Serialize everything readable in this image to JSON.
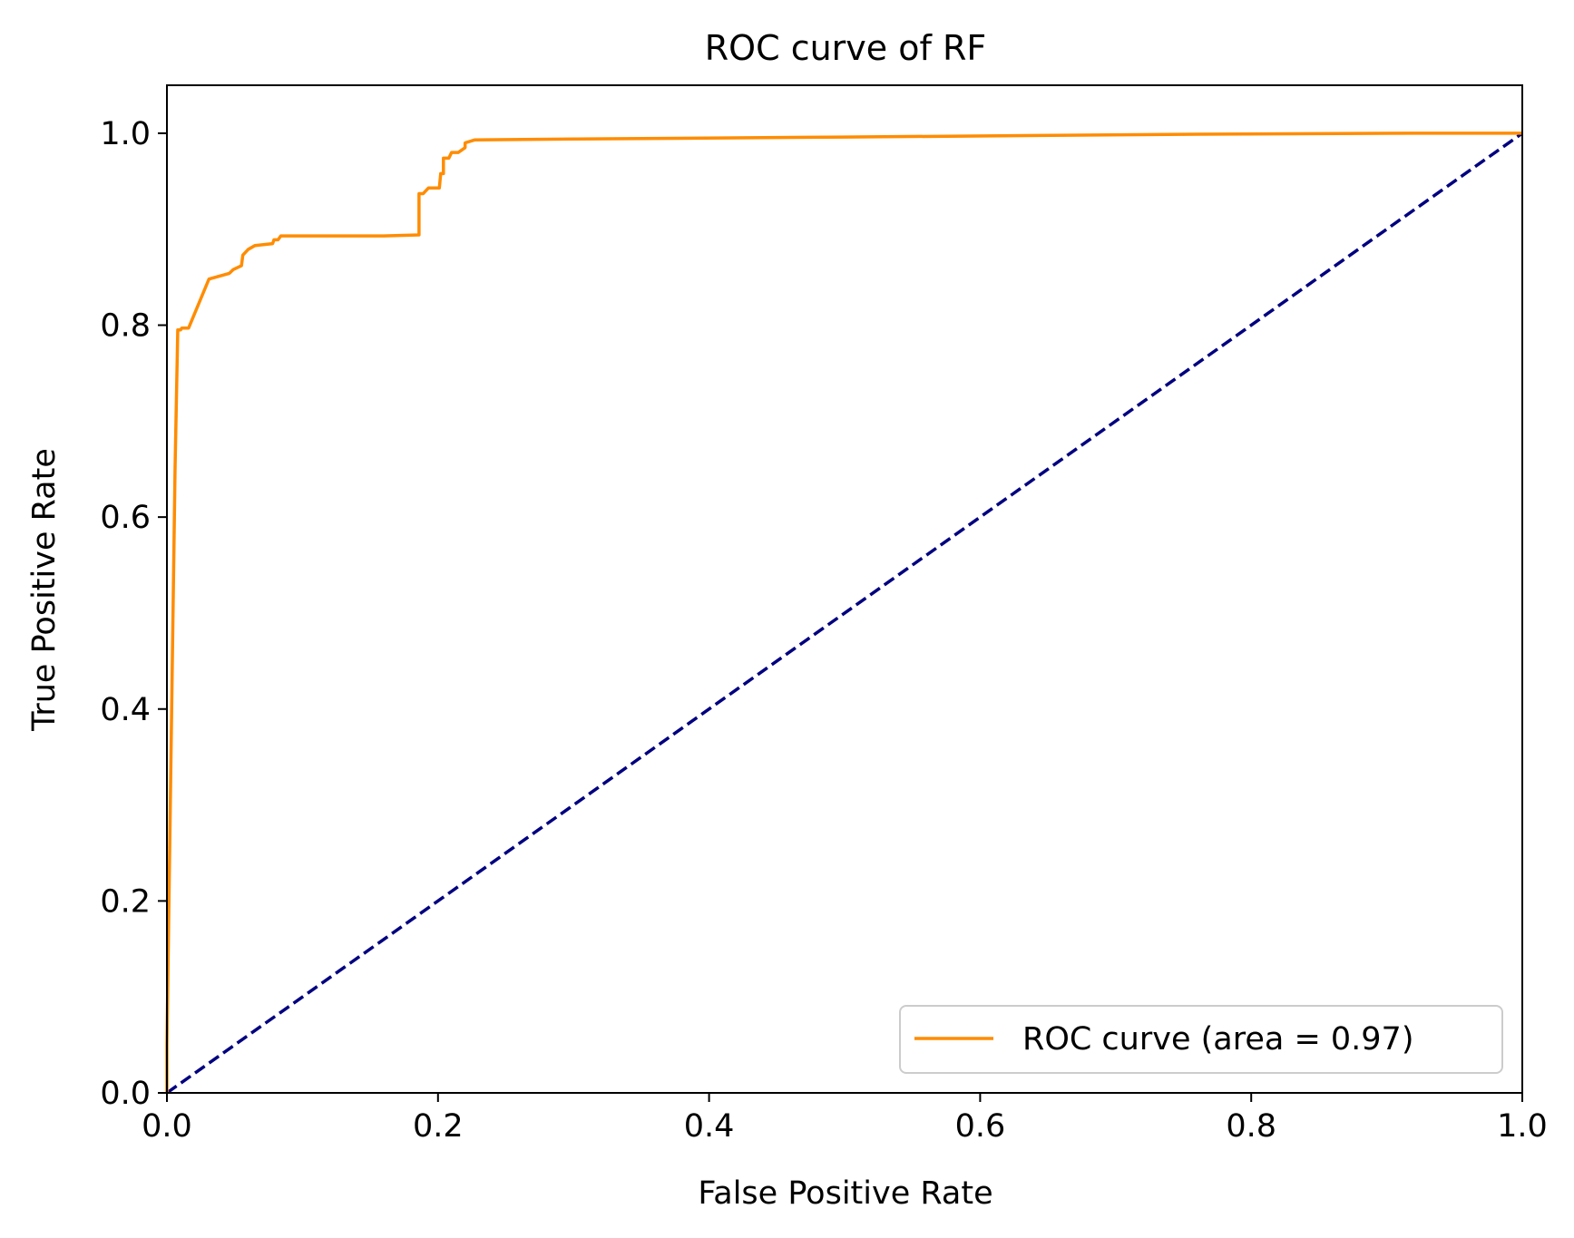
{
  "chart_data": {
    "type": "line",
    "title": "ROC curve of RF",
    "xlabel": "False Positive Rate",
    "ylabel": "True Positive Rate",
    "xlim": [
      0.0,
      1.0
    ],
    "ylim": [
      0.0,
      1.05
    ],
    "x_ticks": [
      0.0,
      0.2,
      0.4,
      0.6,
      0.8,
      1.0
    ],
    "x_tick_labels": [
      "0.0",
      "0.2",
      "0.4",
      "0.6",
      "0.8",
      "1.0"
    ],
    "y_ticks": [
      0.0,
      0.2,
      0.4,
      0.6,
      0.8,
      1.0
    ],
    "y_tick_labels": [
      "0.0",
      "0.2",
      "0.4",
      "0.6",
      "0.8",
      "1.0"
    ],
    "grid": false,
    "legend": {
      "position": "lower-right",
      "entries": [
        "ROC curve (area = 0.97)"
      ]
    },
    "series": [
      {
        "name": "ROC curve (area = 0.97)",
        "color": "#ff8c00",
        "style": "solid",
        "x": [
          0.0,
          0.0,
          0.003,
          0.006,
          0.008,
          0.01,
          0.011,
          0.016,
          0.031,
          0.046,
          0.049,
          0.055,
          0.056,
          0.06,
          0.065,
          0.078,
          0.079,
          0.082,
          0.084,
          0.09,
          0.16,
          0.186,
          0.186,
          0.189,
          0.193,
          0.201,
          0.202,
          0.204,
          0.204,
          0.208,
          0.21,
          0.215,
          0.22,
          0.22,
          0.227,
          0.3,
          0.5,
          0.76,
          0.92,
          1.0
        ],
        "y": [
          0.0,
          0.05,
          0.35,
          0.65,
          0.795,
          0.795,
          0.797,
          0.797,
          0.848,
          0.854,
          0.858,
          0.862,
          0.873,
          0.879,
          0.883,
          0.885,
          0.889,
          0.889,
          0.893,
          0.893,
          0.893,
          0.894,
          0.937,
          0.937,
          0.943,
          0.943,
          0.958,
          0.958,
          0.974,
          0.974,
          0.98,
          0.98,
          0.985,
          0.99,
          0.993,
          0.994,
          0.996,
          0.999,
          1.0,
          1.0
        ]
      },
      {
        "color": "#000080",
        "style": "dashed",
        "x": [
          0.0,
          1.0
        ],
        "y": [
          0.0,
          1.0
        ]
      }
    ]
  }
}
